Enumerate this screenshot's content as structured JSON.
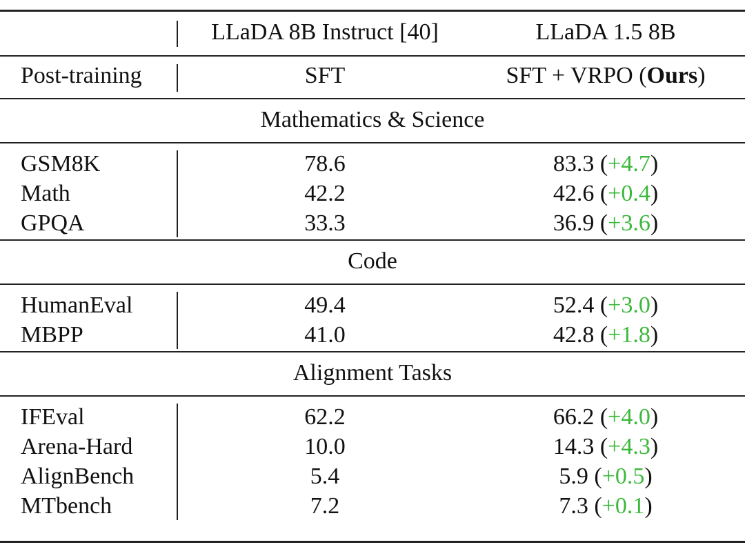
{
  "header": {
    "row1": {
      "col1": "",
      "col2": "LLaDA 8B Instruct [40]",
      "col3": "LLaDA 1.5 8B"
    },
    "row2": {
      "col1": "Post-training",
      "col2": "SFT",
      "col3": [
        "SFT + VRPO (",
        "Ours",
        ")"
      ]
    }
  },
  "sections": [
    {
      "title": "Mathematics & Science",
      "rows": [
        {
          "benchmark": "GSM8K",
          "baseline": "78.6",
          "ours": [
            "83.3 (",
            "+4.7",
            ")"
          ]
        },
        {
          "benchmark": "Math",
          "baseline": "42.2",
          "ours": [
            "42.6 (",
            "+0.4",
            ")"
          ]
        },
        {
          "benchmark": "GPQA",
          "baseline": "33.3",
          "ours": [
            "36.9 (",
            "+3.6",
            ")"
          ]
        }
      ]
    },
    {
      "title": "Code",
      "rows": [
        {
          "benchmark": "HumanEval",
          "baseline": "49.4",
          "ours": [
            "52.4 (",
            "+3.0",
            ")"
          ]
        },
        {
          "benchmark": "MBPP",
          "baseline": "41.0",
          "ours": [
            "42.8 (",
            "+1.8",
            ")"
          ]
        }
      ]
    },
    {
      "title": "Alignment Tasks",
      "rows": [
        {
          "benchmark": "IFEval",
          "baseline": "62.2",
          "ours": [
            "66.2 (",
            "+4.0",
            ")"
          ]
        },
        {
          "benchmark": "Arena-Hard",
          "baseline": "10.0",
          "ours": [
            "14.3 (",
            "+4.3",
            ")"
          ]
        },
        {
          "benchmark": "AlignBench",
          "baseline": "5.4",
          "ours": [
            "5.9 (",
            "+0.5",
            ")"
          ]
        },
        {
          "benchmark": "MTbench",
          "baseline": "7.2",
          "ours": [
            "7.3 (",
            "+0.1",
            ")"
          ]
        }
      ]
    }
  ]
}
